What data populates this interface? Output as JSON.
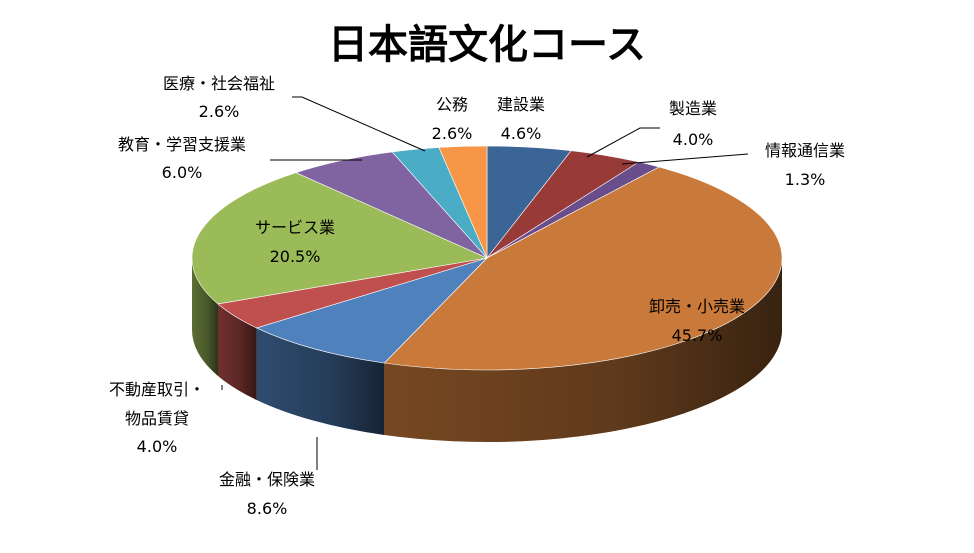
{
  "chart_data": {
    "type": "pie",
    "title": "日本語文化コース",
    "slices": [
      {
        "name": "建設業",
        "value": 4.6,
        "label": "4.6%",
        "color": "#3C6597"
      },
      {
        "name": "製造業",
        "value": 4.0,
        "label": "4.0%",
        "color": "#983A38"
      },
      {
        "name": "情報通信業",
        "value": 1.3,
        "label": "1.3%",
        "color": "#6A4E8C"
      },
      {
        "name": "卸売・小売業",
        "value": 45.7,
        "label": "45.7%",
        "color": "#C97A3A"
      },
      {
        "name": "金融・保険業",
        "value": 8.6,
        "label": "8.6%",
        "color": "#4F81BD"
      },
      {
        "name": "不動産取引・物品賃貸",
        "value": 4.0,
        "label": "4.0%",
        "color": "#C0504D"
      },
      {
        "name": "サービス業",
        "value": 20.5,
        "label": "20.5%",
        "color": "#9BBB59"
      },
      {
        "name": "教育・学習支援業",
        "value": 6.0,
        "label": "6.0%",
        "color": "#8064A2"
      },
      {
        "name": "医療・社会福祉",
        "value": 2.6,
        "label": "2.6%",
        "color": "#4BACC6"
      },
      {
        "name": "公務",
        "value": 2.6,
        "label": "2.6%",
        "color": "#F79646"
      }
    ]
  }
}
